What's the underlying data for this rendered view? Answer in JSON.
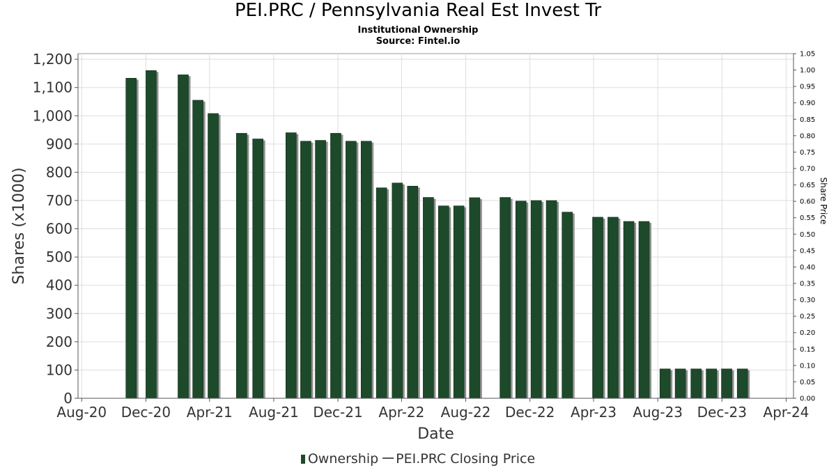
{
  "header": {
    "title": "PEI.PRC / Pennsylvania Real Est Invest Tr",
    "subtitle": "Institutional Ownership",
    "source": "Source: Fintel.io"
  },
  "legend": {
    "ownership_label": "Ownership",
    "price_label": "PEI.PRC Closing Price"
  },
  "colors": {
    "bar": "#1d4a2a",
    "bar_shadow": "#8f8f8f",
    "grid": "#dddddd",
    "axis": "#555555"
  },
  "chart_data": {
    "type": "bar",
    "title": "PEI.PRC / Pennsylvania Real Est Invest Tr",
    "xlabel": "Date",
    "ylabel": "Shares (x1000)",
    "y2label": "Share Price",
    "ylim": [
      0,
      1220
    ],
    "y2lim": [
      0,
      1.05
    ],
    "x_range": [
      "2020-07-25",
      "2024-04-15"
    ],
    "x_ticks": [
      {
        "date": "2020-08-01",
        "label": "Aug-20"
      },
      {
        "date": "2020-12-01",
        "label": "Dec-20"
      },
      {
        "date": "2021-04-01",
        "label": "Apr-21"
      },
      {
        "date": "2021-08-01",
        "label": "Aug-21"
      },
      {
        "date": "2021-12-01",
        "label": "Dec-21"
      },
      {
        "date": "2022-04-01",
        "label": "Apr-22"
      },
      {
        "date": "2022-08-01",
        "label": "Aug-22"
      },
      {
        "date": "2022-12-01",
        "label": "Dec-22"
      },
      {
        "date": "2023-04-01",
        "label": "Apr-23"
      },
      {
        "date": "2023-08-01",
        "label": "Aug-23"
      },
      {
        "date": "2023-12-01",
        "label": "Dec-23"
      },
      {
        "date": "2024-04-01",
        "label": "Apr-24"
      }
    ],
    "y_ticks": [
      "0",
      "100",
      "200",
      "300",
      "400",
      "500",
      "600",
      "700",
      "800",
      "900",
      "1,000",
      "1,100",
      "1,200"
    ],
    "y2_ticks": [
      "0.00",
      "0.05",
      "0.10",
      "0.15",
      "0.20",
      "0.25",
      "0.30",
      "0.35",
      "0.40",
      "0.45",
      "0.50",
      "0.55",
      "0.60",
      "0.65",
      "0.70",
      "0.75",
      "0.80",
      "0.85",
      "0.90",
      "0.95",
      "1.00",
      "1.05"
    ],
    "series": [
      {
        "name": "Ownership",
        "points": [
          {
            "date": "2020-10-24",
            "value": 1133
          },
          {
            "date": "2020-12-01",
            "value": 1160
          },
          {
            "date": "2021-01-31",
            "value": 1145
          },
          {
            "date": "2021-02-28",
            "value": 1055
          },
          {
            "date": "2021-03-29",
            "value": 1008
          },
          {
            "date": "2021-05-22",
            "value": 938
          },
          {
            "date": "2021-06-22",
            "value": 918
          },
          {
            "date": "2021-08-24",
            "value": 940
          },
          {
            "date": "2021-09-21",
            "value": 910
          },
          {
            "date": "2021-10-19",
            "value": 913
          },
          {
            "date": "2021-11-17",
            "value": 938
          },
          {
            "date": "2021-12-16",
            "value": 910
          },
          {
            "date": "2022-01-14",
            "value": 910
          },
          {
            "date": "2022-02-12",
            "value": 745
          },
          {
            "date": "2022-03-14",
            "value": 762
          },
          {
            "date": "2022-04-12",
            "value": 751
          },
          {
            "date": "2022-05-12",
            "value": 711
          },
          {
            "date": "2022-06-10",
            "value": 681
          },
          {
            "date": "2022-07-09",
            "value": 681
          },
          {
            "date": "2022-08-08",
            "value": 710
          },
          {
            "date": "2022-10-05",
            "value": 711
          },
          {
            "date": "2022-11-04",
            "value": 698
          },
          {
            "date": "2022-12-03",
            "value": 700
          },
          {
            "date": "2023-01-01",
            "value": 700
          },
          {
            "date": "2023-01-31",
            "value": 659
          },
          {
            "date": "2023-03-30",
            "value": 641
          },
          {
            "date": "2023-04-28",
            "value": 641
          },
          {
            "date": "2023-05-28",
            "value": 626
          },
          {
            "date": "2023-06-26",
            "value": 626
          },
          {
            "date": "2023-08-05",
            "value": 104
          },
          {
            "date": "2023-09-03",
            "value": 104
          },
          {
            "date": "2023-10-03",
            "value": 104
          },
          {
            "date": "2023-11-01",
            "value": 104
          },
          {
            "date": "2023-11-30",
            "value": 104
          },
          {
            "date": "2023-12-30",
            "value": 104
          }
        ]
      }
    ]
  }
}
